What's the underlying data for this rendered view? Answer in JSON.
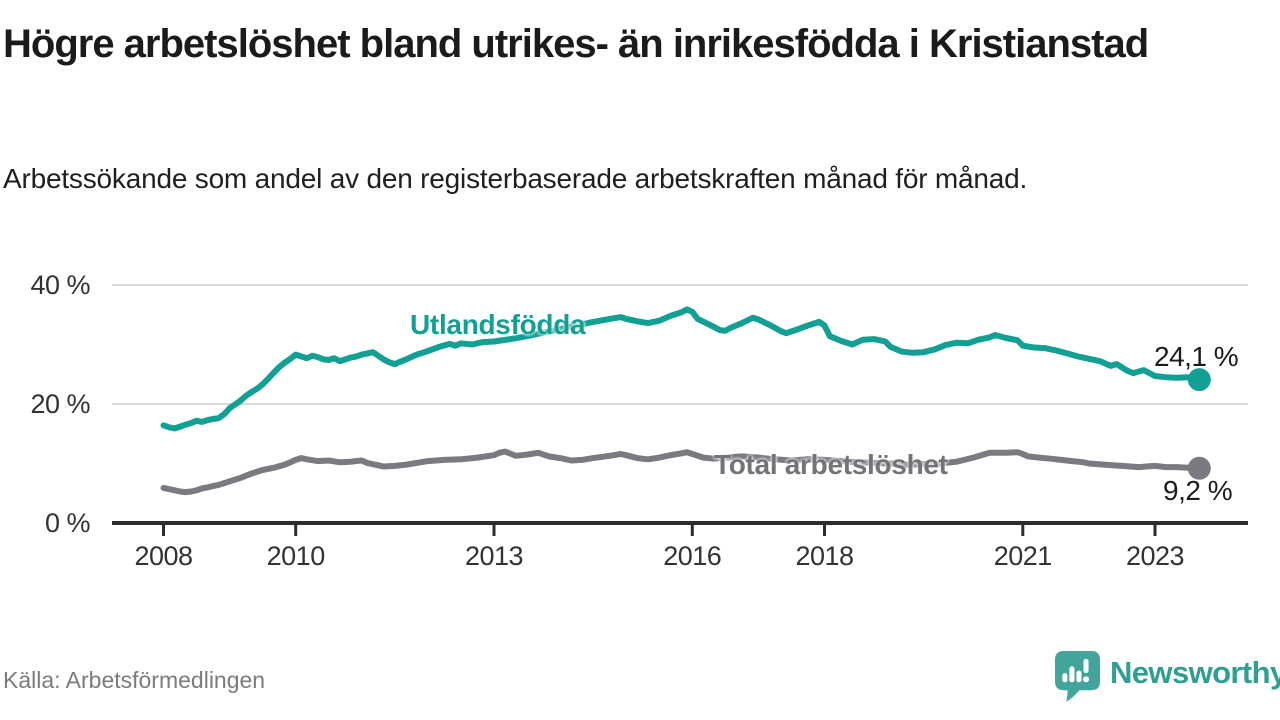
{
  "header": {
    "title": "Högre arbetslöshet bland utrikes- än inrikesfödda i Kristianstad",
    "subtitle": "Arbetssökande som andel av den registerbaserade arbetskraften månad för månad."
  },
  "footer": {
    "source": "Källa: Arbetsförmedlingen",
    "brand": "Newsworthy"
  },
  "colors": {
    "foreign_born_line": "#11a093",
    "total_line": "#7a7a80",
    "foreign_born_label": "#11a093",
    "total_label": "#737378",
    "grid": "#dadada",
    "axis": "#2d2d2d",
    "tick_text": "#323237",
    "logo_icon": "#43a49b",
    "logo_text": "#2f9f93"
  },
  "chart_data": {
    "type": "line",
    "title": "Högre arbetslöshet bland utrikes- än inrikesfödda i Kristianstad",
    "subtitle": "Arbetssökande som andel av den registerbaserade arbetskraften månad för månad.",
    "unit": "percent of register-based labour force",
    "grid": "horizontal",
    "legend_position": "inline-labels-on-lines",
    "x_axis": {
      "range": [
        2007.7,
        2024.1
      ],
      "ticks": [
        {
          "year": 2008,
          "label": "2008"
        },
        {
          "year": 2010,
          "label": "2010"
        },
        {
          "year": 2013,
          "label": "2013"
        },
        {
          "year": 2016,
          "label": "2016"
        },
        {
          "year": 2018,
          "label": "2018"
        },
        {
          "year": 2021,
          "label": "2021"
        },
        {
          "year": 2023,
          "label": "2023"
        }
      ]
    },
    "y_axis": {
      "range": [
        0,
        42
      ],
      "ticks": [
        {
          "value": 40,
          "label": "40 %"
        },
        {
          "value": 20,
          "label": "20 %"
        },
        {
          "value": 0,
          "label": "0 %"
        }
      ]
    },
    "series": [
      {
        "name": "Utlandsfödda",
        "color": "#11a093",
        "end_label": "24,1 %",
        "end_value": 24.1,
        "points": [
          [
            2008.0,
            16.4
          ],
          [
            2008.08,
            16.1
          ],
          [
            2008.17,
            15.9
          ],
          [
            2008.25,
            16.2
          ],
          [
            2008.33,
            16.5
          ],
          [
            2008.42,
            16.8
          ],
          [
            2008.5,
            17.2
          ],
          [
            2008.58,
            17.0
          ],
          [
            2008.67,
            17.3
          ],
          [
            2008.75,
            17.5
          ],
          [
            2008.83,
            17.6
          ],
          [
            2008.92,
            18.3
          ],
          [
            2009.0,
            19.3
          ],
          [
            2009.08,
            19.9
          ],
          [
            2009.17,
            20.6
          ],
          [
            2009.25,
            21.4
          ],
          [
            2009.33,
            22.0
          ],
          [
            2009.42,
            22.6
          ],
          [
            2009.5,
            23.3
          ],
          [
            2009.58,
            24.2
          ],
          [
            2009.67,
            25.3
          ],
          [
            2009.75,
            26.2
          ],
          [
            2009.83,
            26.9
          ],
          [
            2009.92,
            27.6
          ],
          [
            2010.0,
            28.3
          ],
          [
            2010.08,
            28.0
          ],
          [
            2010.17,
            27.7
          ],
          [
            2010.25,
            28.1
          ],
          [
            2010.33,
            27.9
          ],
          [
            2010.42,
            27.5
          ],
          [
            2010.5,
            27.4
          ],
          [
            2010.58,
            27.7
          ],
          [
            2010.67,
            27.2
          ],
          [
            2010.75,
            27.5
          ],
          [
            2010.83,
            27.8
          ],
          [
            2010.92,
            28.0
          ],
          [
            2011.0,
            28.3
          ],
          [
            2011.08,
            28.5
          ],
          [
            2011.17,
            28.7
          ],
          [
            2011.25,
            28.1
          ],
          [
            2011.33,
            27.5
          ],
          [
            2011.42,
            27.0
          ],
          [
            2011.5,
            26.7
          ],
          [
            2011.58,
            27.1
          ],
          [
            2011.67,
            27.5
          ],
          [
            2011.75,
            27.9
          ],
          [
            2011.83,
            28.3
          ],
          [
            2011.92,
            28.6
          ],
          [
            2012.0,
            28.9
          ],
          [
            2012.17,
            29.6
          ],
          [
            2012.33,
            30.1
          ],
          [
            2012.42,
            29.8
          ],
          [
            2012.5,
            30.2
          ],
          [
            2012.67,
            30.0
          ],
          [
            2012.83,
            30.4
          ],
          [
            2013.0,
            30.5
          ],
          [
            2013.25,
            30.9
          ],
          [
            2013.5,
            31.4
          ],
          [
            2013.75,
            32.0
          ],
          [
            2014.0,
            32.6
          ],
          [
            2014.25,
            33.2
          ],
          [
            2014.5,
            33.8
          ],
          [
            2014.75,
            34.3
          ],
          [
            2014.92,
            34.6
          ],
          [
            2015.0,
            34.3
          ],
          [
            2015.17,
            33.9
          ],
          [
            2015.33,
            33.6
          ],
          [
            2015.5,
            34.0
          ],
          [
            2015.67,
            34.8
          ],
          [
            2015.83,
            35.4
          ],
          [
            2015.92,
            35.9
          ],
          [
            2016.0,
            35.5
          ],
          [
            2016.08,
            34.3
          ],
          [
            2016.25,
            33.4
          ],
          [
            2016.42,
            32.4
          ],
          [
            2016.5,
            32.3
          ],
          [
            2016.58,
            32.8
          ],
          [
            2016.75,
            33.6
          ],
          [
            2016.92,
            34.5
          ],
          [
            2017.0,
            34.2
          ],
          [
            2017.17,
            33.3
          ],
          [
            2017.33,
            32.3
          ],
          [
            2017.42,
            31.9
          ],
          [
            2017.58,
            32.5
          ],
          [
            2017.75,
            33.2
          ],
          [
            2017.92,
            33.8
          ],
          [
            2018.0,
            33.2
          ],
          [
            2018.08,
            31.4
          ],
          [
            2018.25,
            30.6
          ],
          [
            2018.42,
            30.0
          ],
          [
            2018.58,
            30.8
          ],
          [
            2018.75,
            30.9
          ],
          [
            2018.92,
            30.5
          ],
          [
            2019.0,
            29.6
          ],
          [
            2019.17,
            28.8
          ],
          [
            2019.33,
            28.6
          ],
          [
            2019.5,
            28.7
          ],
          [
            2019.67,
            29.2
          ],
          [
            2019.83,
            29.9
          ],
          [
            2020.0,
            30.3
          ],
          [
            2020.17,
            30.2
          ],
          [
            2020.33,
            30.8
          ],
          [
            2020.5,
            31.2
          ],
          [
            2020.58,
            31.6
          ],
          [
            2020.75,
            31.1
          ],
          [
            2020.92,
            30.7
          ],
          [
            2021.0,
            29.8
          ],
          [
            2021.17,
            29.5
          ],
          [
            2021.33,
            29.4
          ],
          [
            2021.5,
            29.0
          ],
          [
            2021.67,
            28.5
          ],
          [
            2021.83,
            28.0
          ],
          [
            2022.0,
            27.6
          ],
          [
            2022.17,
            27.2
          ],
          [
            2022.33,
            26.4
          ],
          [
            2022.42,
            26.7
          ],
          [
            2022.58,
            25.6
          ],
          [
            2022.67,
            25.2
          ],
          [
            2022.83,
            25.7
          ],
          [
            2023.0,
            24.7
          ],
          [
            2023.17,
            24.5
          ],
          [
            2023.33,
            24.4
          ],
          [
            2023.5,
            24.5
          ],
          [
            2023.58,
            24.3
          ],
          [
            2023.67,
            24.1
          ]
        ]
      },
      {
        "name": "Total arbetslöshet",
        "color": "#7a7a80",
        "end_label": "9,2 %",
        "end_value": 9.2,
        "points": [
          [
            2008.0,
            5.9
          ],
          [
            2008.08,
            5.7
          ],
          [
            2008.17,
            5.5
          ],
          [
            2008.25,
            5.3
          ],
          [
            2008.33,
            5.2
          ],
          [
            2008.42,
            5.3
          ],
          [
            2008.5,
            5.5
          ],
          [
            2008.58,
            5.8
          ],
          [
            2008.67,
            6.0
          ],
          [
            2008.75,
            6.2
          ],
          [
            2008.83,
            6.4
          ],
          [
            2008.92,
            6.7
          ],
          [
            2009.0,
            7.0
          ],
          [
            2009.17,
            7.6
          ],
          [
            2009.33,
            8.3
          ],
          [
            2009.5,
            8.9
          ],
          [
            2009.67,
            9.3
          ],
          [
            2009.83,
            9.8
          ],
          [
            2009.92,
            10.2
          ],
          [
            2010.0,
            10.6
          ],
          [
            2010.08,
            10.9
          ],
          [
            2010.17,
            10.7
          ],
          [
            2010.33,
            10.4
          ],
          [
            2010.5,
            10.5
          ],
          [
            2010.67,
            10.2
          ],
          [
            2010.83,
            10.3
          ],
          [
            2011.0,
            10.5
          ],
          [
            2011.08,
            10.1
          ],
          [
            2011.25,
            9.7
          ],
          [
            2011.33,
            9.5
          ],
          [
            2011.5,
            9.6
          ],
          [
            2011.67,
            9.8
          ],
          [
            2011.83,
            10.1
          ],
          [
            2012.0,
            10.4
          ],
          [
            2012.25,
            10.6
          ],
          [
            2012.5,
            10.7
          ],
          [
            2012.75,
            11.0
          ],
          [
            2013.0,
            11.4
          ],
          [
            2013.08,
            11.8
          ],
          [
            2013.17,
            12.0
          ],
          [
            2013.33,
            11.3
          ],
          [
            2013.5,
            11.5
          ],
          [
            2013.67,
            11.8
          ],
          [
            2013.83,
            11.2
          ],
          [
            2014.0,
            10.9
          ],
          [
            2014.17,
            10.5
          ],
          [
            2014.33,
            10.6
          ],
          [
            2014.5,
            10.9
          ],
          [
            2014.75,
            11.3
          ],
          [
            2014.92,
            11.6
          ],
          [
            2015.0,
            11.4
          ],
          [
            2015.17,
            10.9
          ],
          [
            2015.33,
            10.7
          ],
          [
            2015.5,
            11.0
          ],
          [
            2015.67,
            11.4
          ],
          [
            2015.83,
            11.7
          ],
          [
            2015.92,
            11.9
          ],
          [
            2016.0,
            11.6
          ],
          [
            2016.17,
            11.0
          ],
          [
            2016.33,
            10.8
          ],
          [
            2016.5,
            11.0
          ],
          [
            2016.75,
            11.2
          ],
          [
            2017.0,
            11.0
          ],
          [
            2017.25,
            10.7
          ],
          [
            2017.5,
            10.5
          ],
          [
            2017.75,
            10.7
          ],
          [
            2018.0,
            10.6
          ],
          [
            2018.25,
            10.4
          ],
          [
            2018.5,
            10.2
          ],
          [
            2018.75,
            10.1
          ],
          [
            2019.0,
            10.0
          ],
          [
            2019.25,
            9.8
          ],
          [
            2019.5,
            9.9
          ],
          [
            2019.75,
            10.0
          ],
          [
            2020.0,
            10.3
          ],
          [
            2020.25,
            11.0
          ],
          [
            2020.5,
            11.8
          ],
          [
            2020.75,
            11.8
          ],
          [
            2020.92,
            11.9
          ],
          [
            2021.0,
            11.6
          ],
          [
            2021.08,
            11.2
          ],
          [
            2021.25,
            11.0
          ],
          [
            2021.42,
            10.8
          ],
          [
            2021.58,
            10.6
          ],
          [
            2021.75,
            10.4
          ],
          [
            2021.92,
            10.2
          ],
          [
            2022.0,
            10.0
          ],
          [
            2022.25,
            9.8
          ],
          [
            2022.5,
            9.6
          ],
          [
            2022.75,
            9.4
          ],
          [
            2023.0,
            9.6
          ],
          [
            2023.17,
            9.4
          ],
          [
            2023.33,
            9.4
          ],
          [
            2023.5,
            9.3
          ],
          [
            2023.67,
            9.2
          ]
        ]
      }
    ]
  }
}
